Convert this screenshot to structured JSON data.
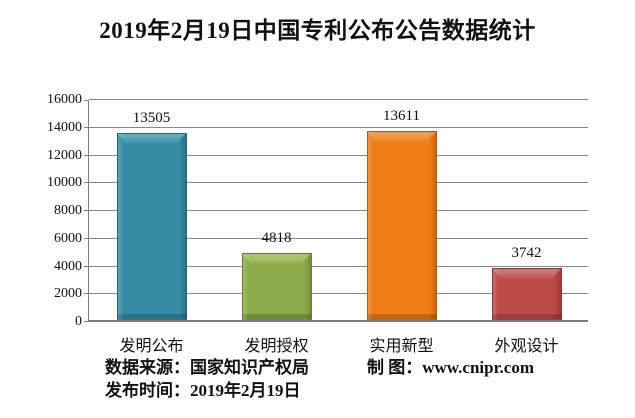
{
  "title": "2019年2月19日中国专利公布公告数据统计",
  "chart_data": {
    "type": "bar",
    "title": "2019年2月19日中国专利公布公告数据统计",
    "categories": [
      "发明公布",
      "发明授权",
      "实用新型",
      "外观设计"
    ],
    "values": [
      13505,
      4818,
      13611,
      3742
    ],
    "value_labels": [
      "13505",
      "4818",
      "13611",
      "3742"
    ],
    "xlabel": "",
    "ylabel": "",
    "ylim": [
      0,
      16000
    ],
    "ytick_step": 2000,
    "grid": true,
    "legend": "none",
    "bar_colors": [
      "#358BA4",
      "#8CAC4B",
      "#EE7D17",
      "#BC4A47"
    ],
    "bar_cap_colors": [
      "#6CB7C9",
      "#B9CF7E",
      "#F7AB5E",
      "#D58582"
    ],
    "gridline_color": "#898989",
    "axis_color": "#7f7f7f",
    "text_color": "#111111"
  },
  "footer": {
    "source_label": "数据来源：国家知识产权局",
    "credit_label": "制 图：www.cnipr.com",
    "date_label": "发布时间：2019年2月19日"
  }
}
